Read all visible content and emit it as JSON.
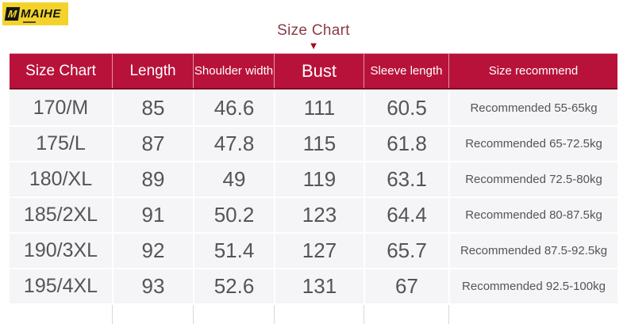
{
  "brand": {
    "name": "MAIHE",
    "mark": "M",
    "logo_bg": "#f3d32b"
  },
  "title": {
    "text": "Size Chart",
    "arrow": "▼"
  },
  "colors": {
    "header_bg": "#b8123a",
    "header_text": "#ffffff",
    "row_bg": "#f5f5f7",
    "cell_text": "#54545a",
    "title_text": "#8a3a46",
    "arrow_red": "#9e0f1f"
  },
  "chart_data": {
    "type": "table",
    "title": "Size Chart",
    "columns": [
      "Size Chart",
      "Length",
      "Shoulder width",
      "Bust",
      "Sleeve length",
      "Size recommend"
    ],
    "rows": [
      [
        "170/M",
        "85",
        "46.6",
        "111",
        "60.5",
        "Recommended 55-65kg"
      ],
      [
        "175/L",
        "87",
        "47.8",
        "115",
        "61.8",
        "Recommended 65-72.5kg"
      ],
      [
        "180/XL",
        "89",
        "49",
        "119",
        "63.1",
        "Recommended 72.5-80kg"
      ],
      [
        "185/2XL",
        "91",
        "50.2",
        "123",
        "64.4",
        "Recommended 80-87.5kg"
      ],
      [
        "190/3XL",
        "92",
        "51.4",
        "127",
        "65.7",
        "Recommended 87.5-92.5kg"
      ],
      [
        "195/4XL",
        "93",
        "52.6",
        "131",
        "67",
        "Recommended 92.5-100kg"
      ]
    ]
  }
}
